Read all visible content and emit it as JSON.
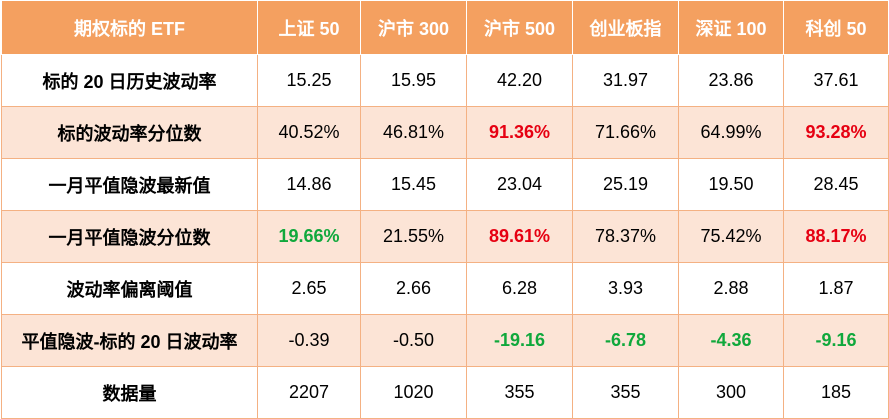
{
  "table": {
    "corner": "期权标的 ETF",
    "columns": [
      "上证 50",
      "沪市 300",
      "沪市 500",
      "创业板指",
      "深证 100",
      "科创 50"
    ],
    "rows": [
      {
        "label": "标的 20 日历史波动率",
        "values": [
          "15.25",
          "15.95",
          "42.20",
          "31.97",
          "23.86",
          "37.61"
        ],
        "highlight": [
          "",
          "",
          "",
          "",
          "",
          ""
        ]
      },
      {
        "label": "标的波动率分位数",
        "values": [
          "40.52%",
          "46.81%",
          "91.36%",
          "71.66%",
          "64.99%",
          "93.28%"
        ],
        "highlight": [
          "",
          "",
          "red",
          "",
          "",
          "red"
        ]
      },
      {
        "label": "一月平值隐波最新值",
        "values": [
          "14.86",
          "15.45",
          "23.04",
          "25.19",
          "19.50",
          "28.45"
        ],
        "highlight": [
          "",
          "",
          "",
          "",
          "",
          ""
        ]
      },
      {
        "label": "一月平值隐波分位数",
        "values": [
          "19.66%",
          "21.55%",
          "89.61%",
          "78.37%",
          "75.42%",
          "88.17%"
        ],
        "highlight": [
          "green",
          "",
          "red",
          "",
          "",
          "red"
        ]
      },
      {
        "label": "波动率偏离阈值",
        "values": [
          "2.65",
          "2.66",
          "6.28",
          "3.93",
          "2.88",
          "1.87"
        ],
        "highlight": [
          "",
          "",
          "",
          "",
          "",
          ""
        ]
      },
      {
        "label": "平值隐波-标的 20 日波动率",
        "values": [
          "-0.39",
          "-0.50",
          "-19.16",
          "-6.78",
          "-4.36",
          "-9.16"
        ],
        "highlight": [
          "",
          "",
          "green",
          "green",
          "green",
          "green"
        ]
      },
      {
        "label": "数据量",
        "values": [
          "2207",
          "1020",
          "355",
          "355",
          "300",
          "185"
        ],
        "highlight": [
          "",
          "",
          "",
          "",
          "",
          ""
        ]
      }
    ],
    "colors": {
      "header_bg": "#f4a060",
      "alt_row_bg": "#fce4d6",
      "high_red": "#e60012",
      "low_green": "#10a83c"
    }
  }
}
